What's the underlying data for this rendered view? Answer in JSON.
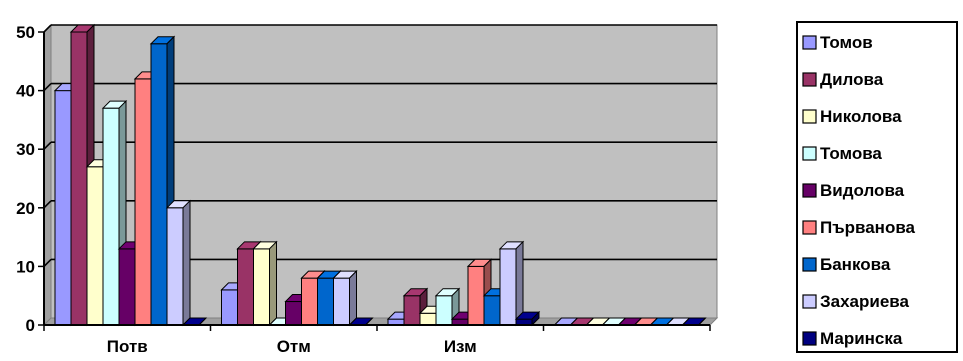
{
  "chart_data": {
    "type": "bar",
    "categories": [
      "Потв",
      "Отм",
      "Изм",
      ""
    ],
    "series": [
      {
        "name": "Томов",
        "color": "#9999FF",
        "values": [
          40,
          6,
          1,
          0
        ]
      },
      {
        "name": "Дилова",
        "color": "#993366",
        "values": [
          50,
          13,
          5,
          0
        ]
      },
      {
        "name": "Николова",
        "color": "#FFFFCC",
        "values": [
          27,
          13,
          2,
          0
        ]
      },
      {
        "name": "Томова",
        "color": "#CCFFFF",
        "values": [
          37,
          0,
          5,
          0
        ]
      },
      {
        "name": "Видолова",
        "color": "#660066",
        "values": [
          13,
          4,
          1,
          0
        ]
      },
      {
        "name": "Първанова",
        "color": "#FF8080",
        "values": [
          42,
          8,
          10,
          0
        ]
      },
      {
        "name": "Банкова",
        "color": "#0066CC",
        "values": [
          48,
          8,
          5,
          0
        ]
      },
      {
        "name": "Захариева",
        "color": "#CCCCFF",
        "values": [
          20,
          8,
          13,
          0
        ]
      },
      {
        "name": "Маринска",
        "color": "#000080",
        "values": [
          0,
          0,
          1,
          0
        ]
      }
    ],
    "yticks": [
      "0",
      "10",
      "20",
      "30",
      "40",
      "50"
    ],
    "ylim": [
      0,
      50
    ],
    "grid": true,
    "legend": "right",
    "plot_background": "#C0C0C0"
  }
}
